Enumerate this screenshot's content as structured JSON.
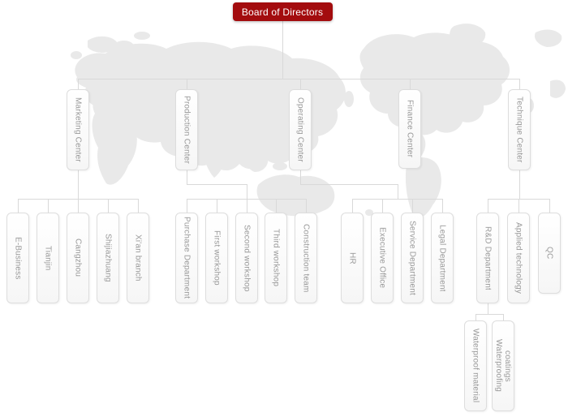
{
  "org": {
    "root": {
      "id": "board",
      "label": "Board of Directors",
      "children": [
        {
          "id": "marketing-center",
          "label": "Marketing Center",
          "children": [
            {
              "id": "e-business",
              "label": "E-Business",
              "children": []
            },
            {
              "id": "tianjin",
              "label": "Tianjin",
              "children": []
            },
            {
              "id": "cangzhou",
              "label": "Cangzhou",
              "children": []
            },
            {
              "id": "shijiazhuang",
              "label": "Shijiazhuang",
              "children": []
            },
            {
              "id": "xian-branch",
              "label": "Xi'an branch",
              "children": []
            }
          ]
        },
        {
          "id": "production-center",
          "label": "Production Center",
          "children": [
            {
              "id": "purchase-department",
              "label": "Purchase Department",
              "children": []
            },
            {
              "id": "first-workshop",
              "label": "First workshop",
              "children": []
            },
            {
              "id": "second-workshop",
              "label": "Second workshop",
              "children": []
            },
            {
              "id": "third-workshop",
              "label": "Third workshop",
              "children": []
            },
            {
              "id": "construction-team",
              "label": "Construction team",
              "children": []
            }
          ]
        },
        {
          "id": "operating-center",
          "label": "Operating Center",
          "children": [
            {
              "id": "hr",
              "label": "HR",
              "children": []
            },
            {
              "id": "executive-office",
              "label": "Executive Office",
              "children": []
            },
            {
              "id": "service-department",
              "label": "Service Department",
              "children": []
            },
            {
              "id": "legal-department",
              "label": "Legal Department",
              "children": []
            }
          ]
        },
        {
          "id": "finance-center",
          "label": "Finance Center",
          "children": []
        },
        {
          "id": "technique-center",
          "label": "Technique Center",
          "children": [
            {
              "id": "rd-department",
              "label": "R&D Department",
              "children": [
                {
                  "id": "waterproof-material",
                  "label": "Waterproof material",
                  "children": []
                },
                {
                  "id": "waterproofing-coatings",
                  "label": "Waterproofing coatings",
                  "children": []
                }
              ]
            },
            {
              "id": "applied-technology",
              "label": "Applied technology",
              "children": []
            },
            {
              "id": "qc",
              "label": "QC",
              "children": []
            }
          ]
        }
      ]
    }
  },
  "colors": {
    "root_bg": "#a30c0e",
    "root_text": "#ffffff",
    "node_border": "#dddddd",
    "node_text": "#999999",
    "connector": "#d9d9d9",
    "map": "#e9e9e9"
  }
}
